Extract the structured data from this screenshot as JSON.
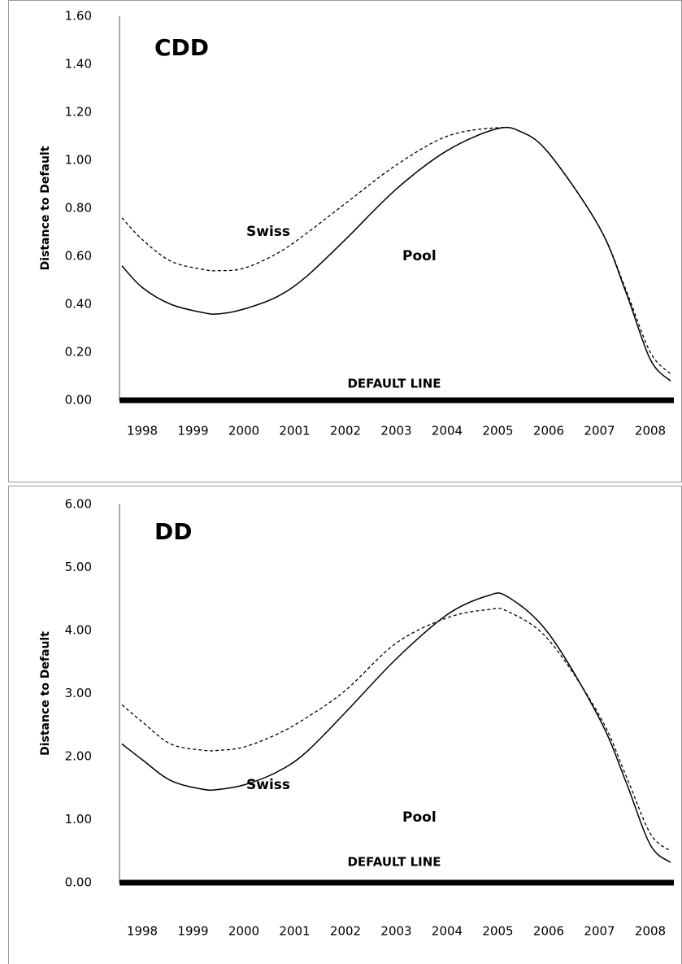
{
  "chart_data": [
    {
      "type": "line",
      "title": "CDD",
      "y_label": "Distance to Default",
      "annotation": "DEFAULT LINE",
      "x": [
        1997.6,
        1998,
        1998.56,
        1999.2,
        1999.52,
        2000,
        2000.64,
        2001.2,
        2002,
        2003,
        2004,
        2004.96,
        2005.44,
        2006,
        2007,
        2007.52,
        2008,
        2008.4
      ],
      "xlim": [
        1997.6,
        2008.4
      ],
      "xticks": [
        1998,
        1999,
        2000,
        2001,
        2002,
        2003,
        2004,
        2005,
        2006,
        2007,
        2008
      ],
      "ylim": [
        0,
        1.6
      ],
      "yticks": [
        {
          "value": 0,
          "label": "0.00"
        },
        {
          "value": 0.2,
          "label": "0.20"
        },
        {
          "value": 0.4,
          "label": "0.40"
        },
        {
          "value": 0.6,
          "label": "0.60"
        },
        {
          "value": 0.8,
          "label": "0.80"
        },
        {
          "value": 1.0,
          "label": "1.00"
        },
        {
          "value": 1.2,
          "label": "1.20"
        },
        {
          "value": 1.4,
          "label": "1.40"
        },
        {
          "value": 1.6,
          "label": "1.60"
        }
      ],
      "grid": false,
      "series": [
        {
          "name": "Swiss",
          "color": "#000000",
          "style": "dashed",
          "values": [
            0.76,
            0.67,
            0.58,
            0.545,
            0.54,
            0.55,
            0.61,
            0.69,
            0.82,
            0.98,
            1.1,
            1.135,
            1.12,
            1.03,
            0.72,
            0.46,
            0.2,
            0.11
          ]
        },
        {
          "name": "Pool",
          "color": "#000000",
          "style": "solid",
          "values": [
            0.56,
            0.47,
            0.4,
            0.365,
            0.36,
            0.38,
            0.43,
            0.51,
            0.67,
            0.88,
            1.04,
            1.13,
            1.12,
            1.03,
            0.72,
            0.45,
            0.17,
            0.08
          ]
        }
      ]
    },
    {
      "type": "line",
      "title": "DD",
      "y_label": "Distance to Default",
      "annotation": "DEFAULT LINE",
      "x": [
        1997.6,
        1998,
        1998.56,
        1999.2,
        1999.52,
        2000,
        2000.64,
        2001.2,
        2002,
        2003,
        2004,
        2004.8,
        2005.2,
        2006,
        2007,
        2007.52,
        2008,
        2008.4
      ],
      "xlim": [
        1997.6,
        2008.4
      ],
      "xticks": [
        1998,
        1999,
        2000,
        2001,
        2002,
        2003,
        2004,
        2005,
        2006,
        2007,
        2008
      ],
      "ylim": [
        0,
        6
      ],
      "yticks": [
        {
          "value": 0,
          "label": "0.00"
        },
        {
          "value": 1,
          "label": "1.00"
        },
        {
          "value": 2,
          "label": "2.00"
        },
        {
          "value": 3,
          "label": "3.00"
        },
        {
          "value": 4,
          "label": "4.00"
        },
        {
          "value": 5,
          "label": "5.00"
        },
        {
          "value": 6,
          "label": "6.00"
        }
      ],
      "grid": false,
      "series": [
        {
          "name": "Swiss",
          "color": "#000000",
          "style": "dashed",
          "values": [
            2.82,
            2.55,
            2.2,
            2.1,
            2.1,
            2.15,
            2.35,
            2.6,
            3.05,
            3.8,
            4.2,
            4.33,
            4.3,
            3.85,
            2.65,
            1.7,
            0.78,
            0.5
          ]
        },
        {
          "name": "Pool",
          "color": "#000000",
          "style": "solid",
          "values": [
            2.2,
            1.95,
            1.62,
            1.48,
            1.48,
            1.55,
            1.75,
            2.05,
            2.7,
            3.55,
            4.25,
            4.55,
            4.53,
            3.95,
            2.6,
            1.6,
            0.6,
            0.32
          ]
        }
      ]
    }
  ]
}
